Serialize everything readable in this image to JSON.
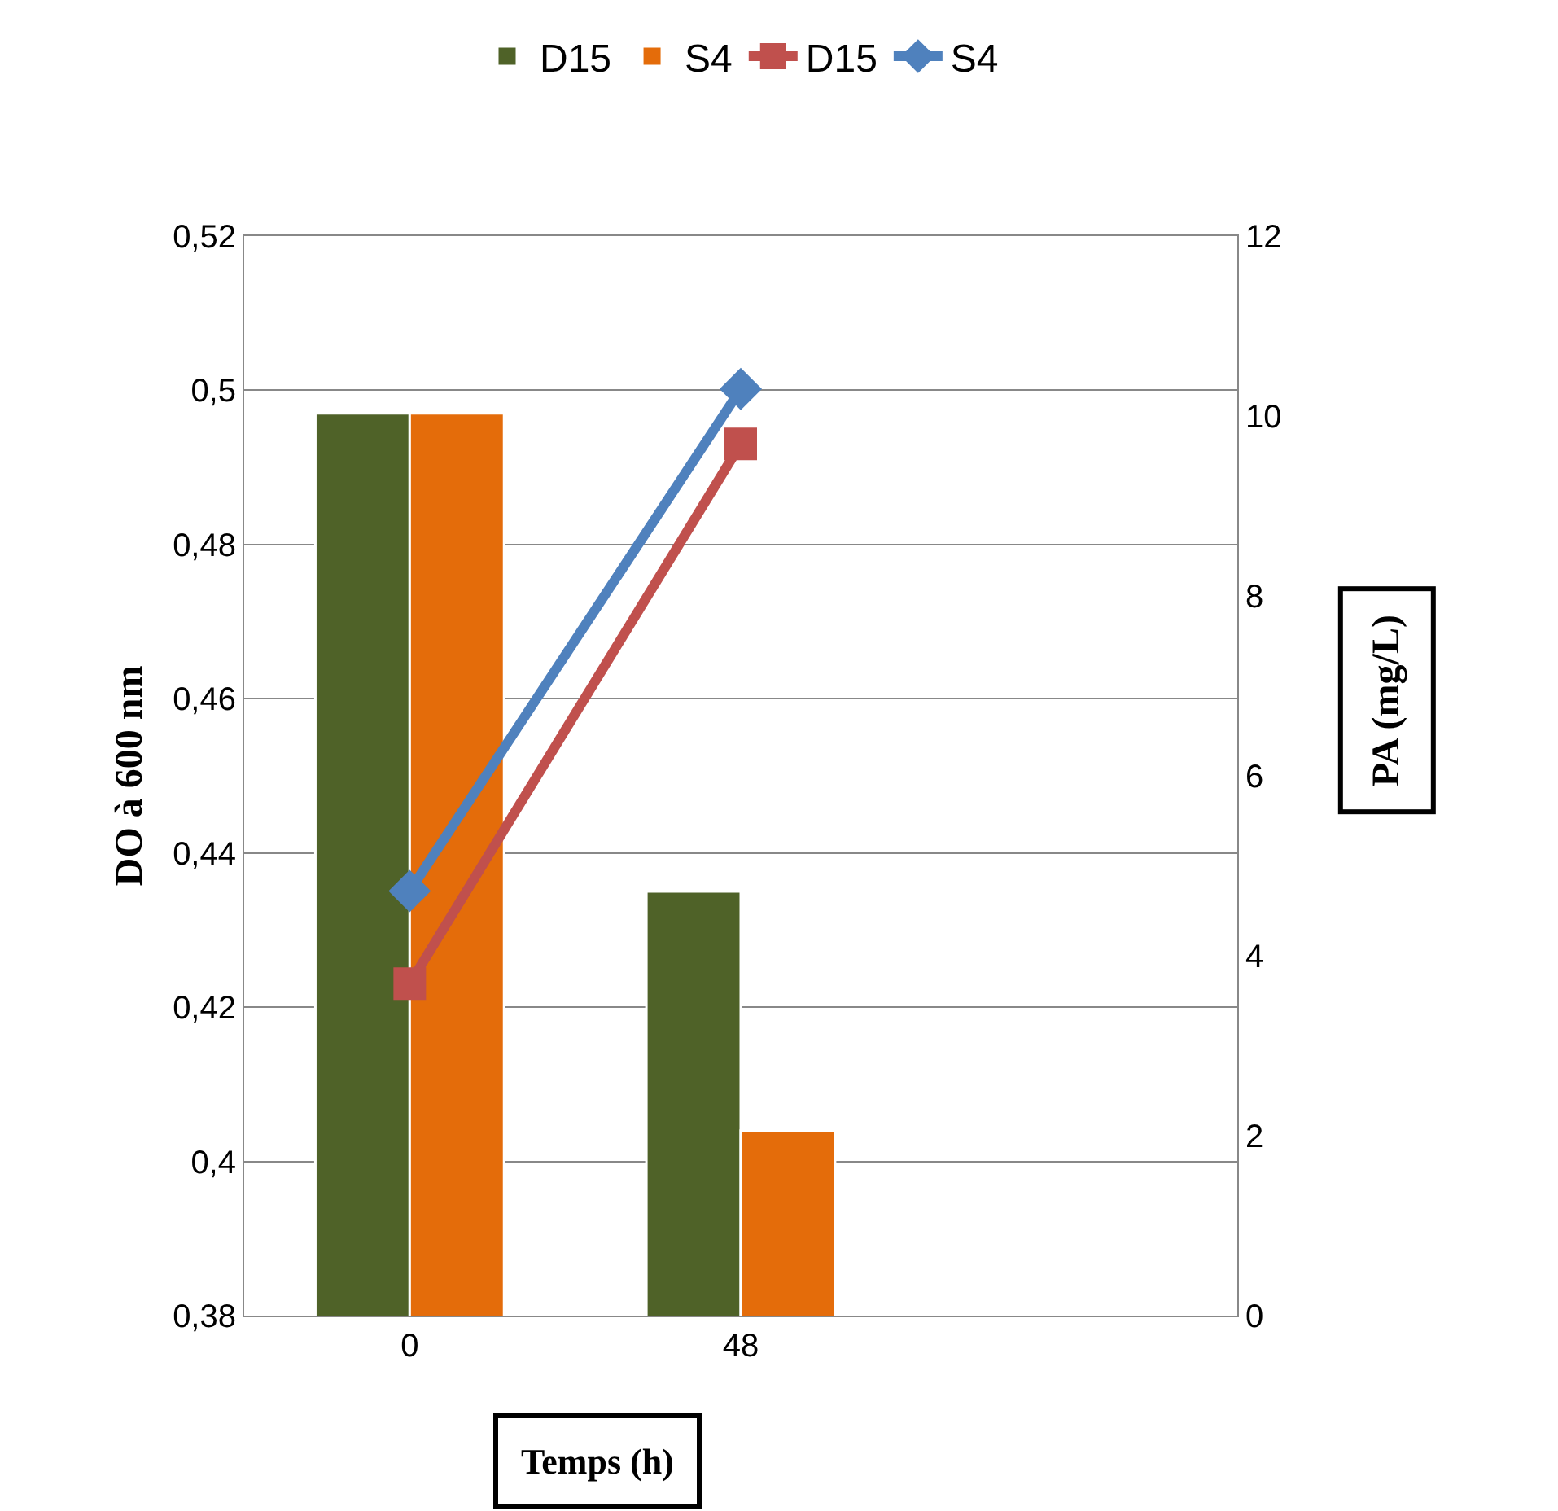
{
  "chart_data": {
    "type": "bar",
    "xlabel": "Temps (h)",
    "ylabel": "DO à 600 nm",
    "y2label": "PA (mg/L)",
    "categories": [
      "0",
      "48",
      null
    ],
    "series": [
      {
        "name": "D15",
        "color": "#4f6228",
        "values": [
          0.497,
          0.435,
          null
        ]
      },
      {
        "name": "S4",
        "color": "#e46c0a",
        "values": [
          0.497,
          0.404,
          null
        ]
      },
      {
        "name": "D15",
        "type": "line",
        "axis": "y2",
        "color": "#c0504d",
        "marker": "square",
        "values": [
          3.69,
          9.69,
          null
        ]
      },
      {
        "name": "S4",
        "type": "line",
        "axis": "y2",
        "color": "#4f81bd",
        "marker": "diamond",
        "values": [
          4.72,
          10.3,
          null
        ]
      }
    ],
    "ylim": [
      0.38,
      0.52
    ],
    "yticks": [
      {
        "value": 0.38,
        "label": "0,38"
      },
      {
        "value": 0.4,
        "label": "0,4"
      },
      {
        "value": 0.42,
        "label": "0,42"
      },
      {
        "value": 0.44,
        "label": "0,44"
      },
      {
        "value": 0.46,
        "label": "0,46"
      },
      {
        "value": 0.48,
        "label": "0,48"
      },
      {
        "value": 0.5,
        "label": "0,5"
      },
      {
        "value": 0.52,
        "label": "0,52"
      }
    ],
    "y2lim": [
      0,
      12
    ],
    "y2ticks": [
      0,
      2,
      4,
      6,
      8,
      10,
      12
    ],
    "grid": "y",
    "legend": "top"
  }
}
